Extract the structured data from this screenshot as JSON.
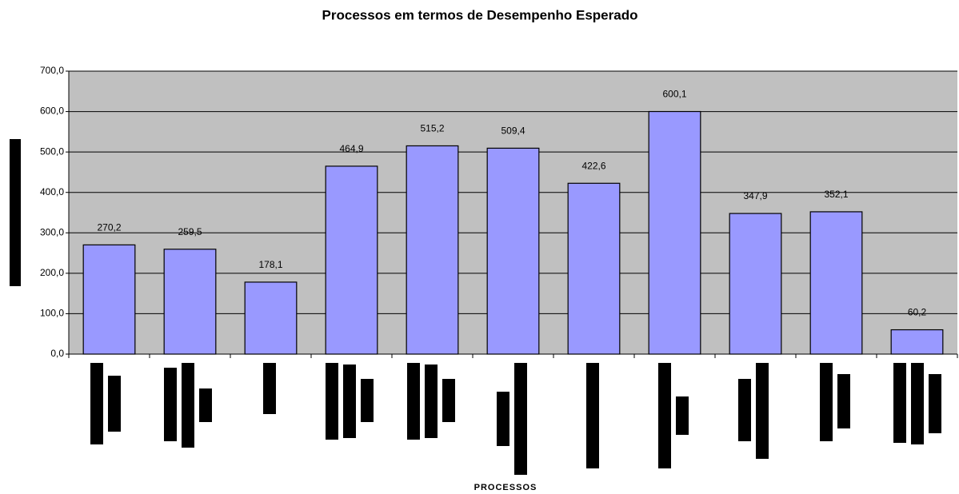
{
  "chart_data": {
    "type": "bar",
    "title": "Processos em termos de Desempenho Esperado",
    "x_label": "PROCESSOS",
    "categories": [
      null,
      null,
      null,
      null,
      null,
      null,
      null,
      null,
      null,
      null,
      null
    ],
    "values": [
      270.2,
      259.5,
      178.1,
      464.9,
      515.2,
      509.4,
      422.6,
      600.1,
      347.9,
      352.1,
      60.2
    ],
    "value_labels": [
      "270,2",
      "259,5",
      "178,1",
      "464,9",
      "515,2",
      "509,4",
      "422,6",
      "600,1",
      "347,9",
      "352,1",
      "60,2"
    ],
    "color": "#9999ff",
    "ylim": [
      0,
      700
    ],
    "yticks": [
      {
        "value": 0,
        "label": "0,0"
      },
      {
        "value": 100,
        "label": "100,0"
      },
      {
        "value": 200,
        "label": "200,0"
      },
      {
        "value": 300,
        "label": "300,0"
      },
      {
        "value": 400,
        "label": "400,0"
      },
      {
        "value": 500,
        "label": "500,0"
      },
      {
        "value": 600,
        "label": "600,0"
      },
      {
        "value": 700,
        "label": "700,0"
      }
    ],
    "grid": true
  }
}
